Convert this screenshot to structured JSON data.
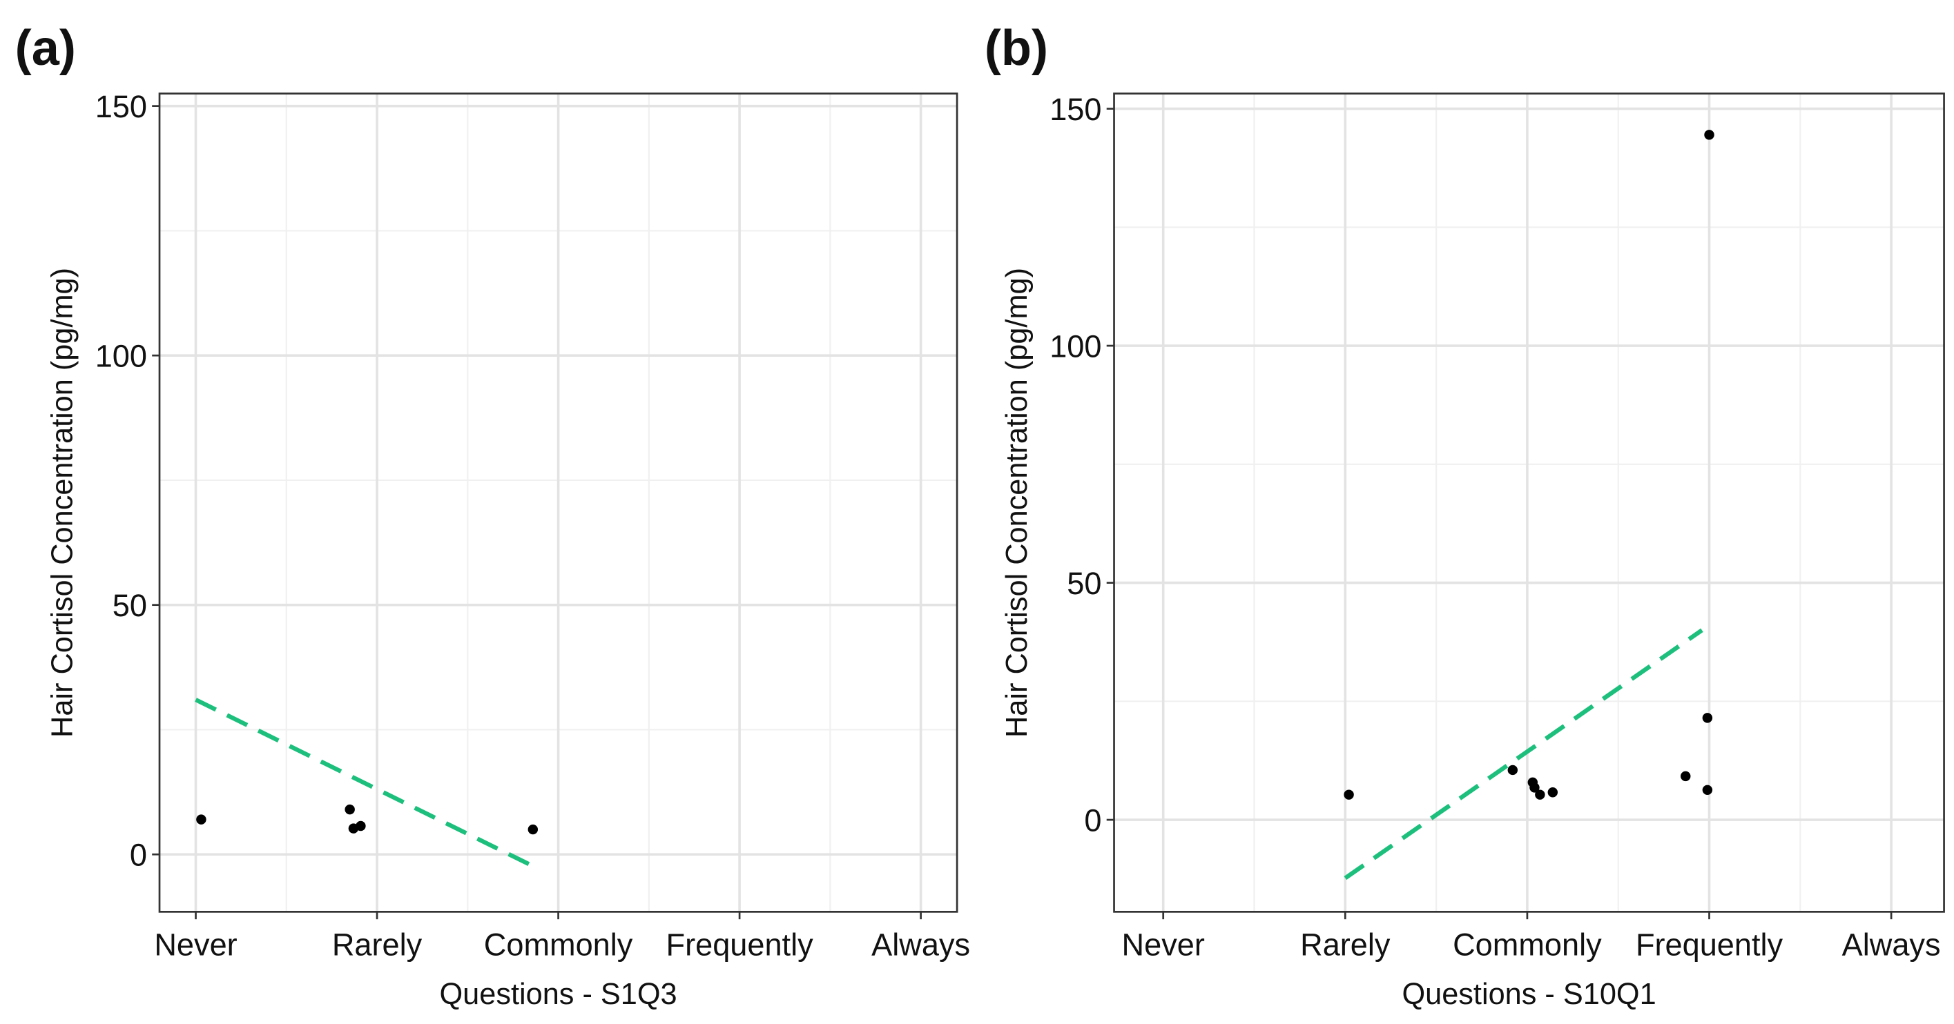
{
  "chart_data": [
    {
      "type": "scatter",
      "panel_label": "(a)",
      "x_label": "Questions - S1Q3",
      "y_label": "Hair Cortisol Concentration (pg/mg)",
      "xlim": [
        0.8,
        5.2
      ],
      "ylim": [
        -11.5,
        152.5
      ],
      "xticks": [
        {
          "value": 1,
          "label": "Never"
        },
        {
          "value": 2,
          "label": "Rarely"
        },
        {
          "value": 3,
          "label": "Commonly"
        },
        {
          "value": 4,
          "label": "Frequently"
        },
        {
          "value": 5,
          "label": "Always"
        }
      ],
      "yticks": [
        0,
        50,
        100,
        150
      ],
      "grid": true,
      "series": [
        {
          "mode": "points",
          "color": "#000000",
          "x": [
            1.03,
            1.85,
            1.87,
            1.91,
            2.86
          ],
          "values": [
            7,
            9,
            5.2,
            5.7,
            5
          ]
        },
        {
          "mode": "dashed-line",
          "color": "#1dbf7d",
          "x": [
            1,
            2.88
          ],
          "values": [
            31,
            -2.7
          ]
        }
      ]
    },
    {
      "type": "scatter",
      "panel_label": "(b)",
      "x_label": "Questions - S10Q1",
      "y_label": "Hair Cortisol Concentration (pg/mg)",
      "xlim": [
        0.73,
        5.29
      ],
      "ylim": [
        -19.4,
        153.2
      ],
      "xticks": [
        {
          "value": 1,
          "label": "Never"
        },
        {
          "value": 2,
          "label": "Rarely"
        },
        {
          "value": 3,
          "label": "Commonly"
        },
        {
          "value": 4,
          "label": "Frequently"
        },
        {
          "value": 5,
          "label": "Always"
        }
      ],
      "yticks": [
        0,
        50,
        100,
        150
      ],
      "grid": true,
      "series": [
        {
          "mode": "points",
          "color": "#000000",
          "x": [
            2.02,
            2.92,
            3.03,
            3.04,
            3.07,
            3.14,
            3.87,
            3.99,
            3.99,
            4.0
          ],
          "values": [
            5.3,
            10.5,
            7.9,
            6.8,
            5.3,
            5.8,
            9.2,
            21.5,
            6.3,
            144.5
          ]
        },
        {
          "mode": "dashed-line",
          "color": "#1dbf7d",
          "x": [
            2,
            3.96
          ],
          "values": [
            -12.3,
            40
          ]
        }
      ]
    }
  ]
}
